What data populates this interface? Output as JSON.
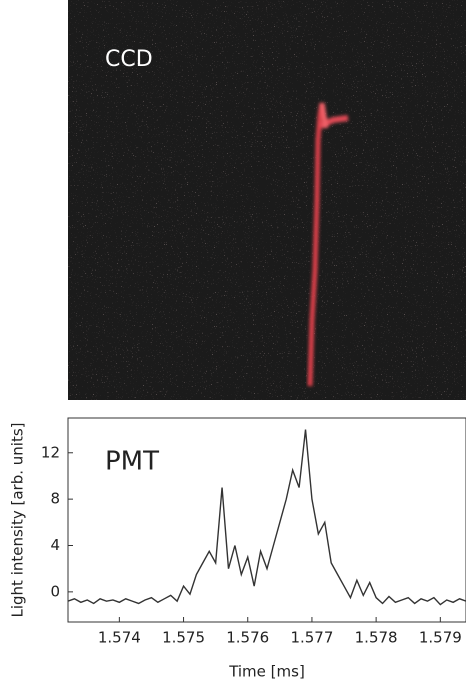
{
  "image": {
    "label": "CCD"
  },
  "chart_data": {
    "type": "line",
    "annotation": "PMT",
    "x_label": "Time [ms]",
    "y_label": "Light intensity [arb. units]",
    "xlim": [
      1.5732,
      1.5794
    ],
    "xticks": [
      1.574,
      1.575,
      1.576,
      1.577,
      1.578,
      1.579
    ],
    "ylim": [
      -2.6,
      15
    ],
    "yticks": [
      0,
      4,
      8,
      12
    ],
    "color": "#333333",
    "x": [
      1.5732,
      1.5733,
      1.5734,
      1.5735,
      1.5736,
      1.5737,
      1.5738,
      1.5739,
      1.574,
      1.5741,
      1.5742,
      1.5743,
      1.5744,
      1.5745,
      1.5746,
      1.5747,
      1.5748,
      1.5749,
      1.575,
      1.5751,
      1.5752,
      1.5753,
      1.5754,
      1.5755,
      1.5756,
      1.5757,
      1.5758,
      1.5759,
      1.576,
      1.5761,
      1.5762,
      1.5763,
      1.5764,
      1.5765,
      1.5766,
      1.5767,
      1.5768,
      1.5769,
      1.577,
      1.5771,
      1.5772,
      1.5773,
      1.5774,
      1.5775,
      1.5776,
      1.5777,
      1.5778,
      1.5779,
      1.578,
      1.5781,
      1.5782,
      1.5783,
      1.5784,
      1.5785,
      1.5786,
      1.5787,
      1.5788,
      1.5789,
      1.579,
      1.5791,
      1.5792,
      1.5793,
      1.5794
    ],
    "values": [
      -0.8,
      -0.6,
      -0.9,
      -0.7,
      -1.0,
      -0.6,
      -0.8,
      -0.7,
      -0.9,
      -0.6,
      -0.8,
      -1.0,
      -0.7,
      -0.5,
      -0.9,
      -0.6,
      -0.3,
      -0.8,
      0.5,
      -0.2,
      1.5,
      2.5,
      3.5,
      2.5,
      9,
      2,
      4,
      1.5,
      3,
      0.5,
      3.5,
      2,
      4,
      6,
      8,
      10.5,
      9,
      14,
      8,
      5,
      6,
      2.5,
      1.5,
      0.5,
      -0.5,
      1,
      -0.3,
      0.8,
      -0.5,
      -1,
      -0.4,
      -0.9,
      -0.7,
      -0.5,
      -1.0,
      -0.6,
      -0.8,
      -0.5,
      -1.1,
      -0.7,
      -0.9,
      -0.6,
      -0.8
    ]
  }
}
